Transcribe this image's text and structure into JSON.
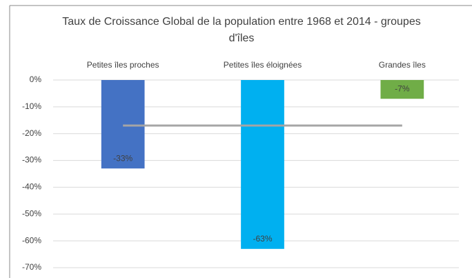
{
  "chart_data": {
    "type": "bar",
    "title": "Taux de Croissance Global de la population entre 1968 et 2014 - groupes d'îles",
    "categories": [
      "Petites îles proches",
      "Petites îles éloignées",
      "Grandes îles"
    ],
    "values": [
      -33,
      -63,
      -7
    ],
    "value_labels": [
      "-33%",
      "-63%",
      "-7%"
    ],
    "colors": [
      "#4472c4",
      "#00b0f0",
      "#70ad47"
    ],
    "line": {
      "type": "line",
      "color": "#a5a5a5",
      "values": [
        -17,
        -17,
        -17
      ]
    },
    "ylim": [
      -70,
      0
    ],
    "yticks": [
      {
        "value": 0,
        "label": "0%"
      },
      {
        "value": -10,
        "label": "-10%"
      },
      {
        "value": -20,
        "label": "-20%"
      },
      {
        "value": -30,
        "label": "-30%"
      },
      {
        "value": -40,
        "label": "-40%"
      },
      {
        "value": -50,
        "label": "-50%"
      },
      {
        "value": -60,
        "label": "-60%"
      },
      {
        "value": -70,
        "label": "-70%"
      }
    ],
    "grid": true
  }
}
